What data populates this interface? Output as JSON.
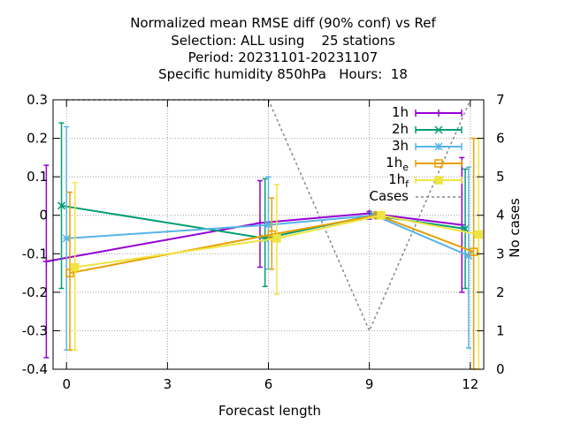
{
  "chart_data": {
    "type": "line",
    "title_lines": [
      "Normalized mean RMSE diff (90% conf) vs Ref",
      "Selection: ALL using    25 stations",
      "Period: 20231101-20231107",
      "Specific humidity 850hPa   Hours:  18"
    ],
    "xlabel": "Forecast length",
    "ylabel_right": "No cases",
    "xlim": [
      -0.4,
      12.4
    ],
    "ylim": [
      -0.4,
      0.3
    ],
    "ylim_right": [
      0,
      7
    ],
    "x_ticks": [
      "0",
      "3",
      "6",
      "9",
      "12"
    ],
    "y_ticks": [
      "0.3",
      "0.2",
      "0.1",
      "0",
      "-0.1",
      "-0.2",
      "-0.3",
      "-0.4"
    ],
    "y2_ticks": [
      "7",
      "6",
      "5",
      "4",
      "3",
      "2",
      "1",
      "0"
    ],
    "grid": true,
    "legend_position": "top-right",
    "series": [
      {
        "name": "1h",
        "sub": "",
        "color": "#9400d3",
        "marker": "plus",
        "x": [
          -0.6,
          5.75,
          9.0,
          11.75
        ],
        "y": [
          -0.12,
          -0.02,
          0.005,
          -0.025
        ],
        "err_low": [
          -0.37,
          -0.135,
          -0.01,
          -0.2
        ],
        "err_high": [
          0.13,
          0.09,
          0.01,
          0.15
        ]
      },
      {
        "name": "2h",
        "sub": "",
        "color": "#009e73",
        "marker": "x",
        "x": [
          -0.15,
          5.9,
          9.1,
          11.85
        ],
        "y": [
          0.025,
          -0.06,
          0.0,
          -0.035
        ],
        "err_low": [
          -0.19,
          -0.185,
          -0.005,
          -0.19
        ],
        "err_high": [
          0.24,
          0.095,
          0.005,
          0.12
        ]
      },
      {
        "name": "3h",
        "sub": "",
        "color": "#56b4e9",
        "marker": "star",
        "x": [
          0.0,
          6.0,
          9.15,
          11.95
        ],
        "y": [
          -0.06,
          -0.025,
          0.0,
          -0.105
        ],
        "err_low": [
          -0.35,
          -0.14,
          -0.005,
          -0.345
        ],
        "err_high": [
          0.23,
          0.1,
          0.005,
          0.125
        ]
      },
      {
        "name": "1h",
        "sub": "e",
        "color": "#e69f00",
        "marker": "square",
        "x": [
          0.1,
          6.1,
          9.25,
          12.1
        ],
        "y": [
          -0.15,
          -0.05,
          0.0,
          -0.095
        ],
        "err_low": [
          -0.35,
          -0.14,
          -0.005,
          -0.4
        ],
        "err_high": [
          0.06,
          0.045,
          0.005,
          0.2
        ]
      },
      {
        "name": "1h",
        "sub": "f",
        "color": "#f0e442",
        "marker": "filled-square",
        "x": [
          0.25,
          6.25,
          9.35,
          12.25
        ],
        "y": [
          -0.135,
          -0.06,
          0.0,
          -0.05
        ],
        "err_low": [
          -0.35,
          -0.205,
          -0.005,
          -0.4
        ],
        "err_high": [
          0.085,
          0.08,
          0.005,
          0.2
        ]
      }
    ],
    "cases": {
      "name": "Cases",
      "color": "#888888",
      "axis": "right",
      "x": [
        0,
        6,
        9,
        12
      ],
      "y": [
        7,
        7,
        1,
        7
      ]
    }
  }
}
